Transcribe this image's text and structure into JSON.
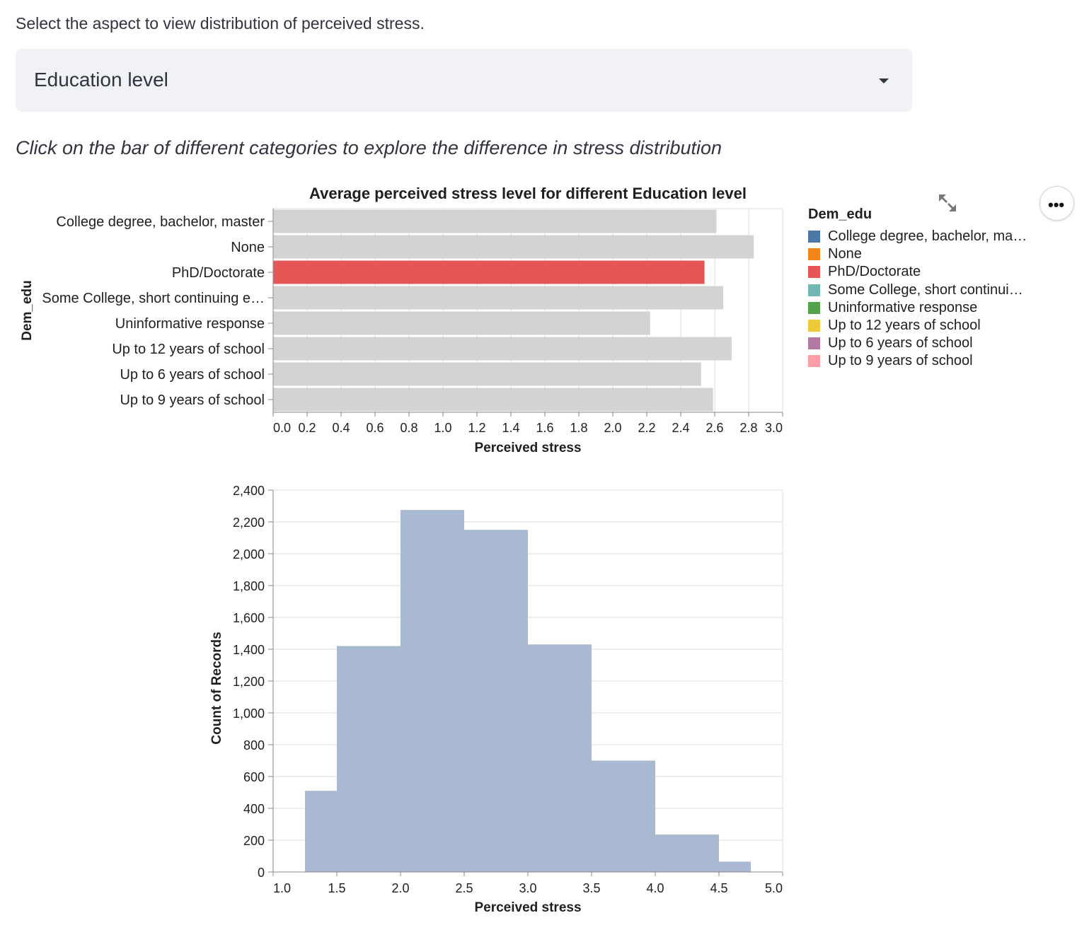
{
  "prompt": {
    "label": "Select the aspect to view distribution of perceived stress."
  },
  "select": {
    "value": "Education level"
  },
  "hint": {
    "text": "Click on the bar of different categories to explore the difference in stress distribution"
  },
  "chart_toolbar": {
    "fullscreen_icon": "expand-arrows-icon",
    "more_icon": "ellipsis-icon",
    "more_label": "•••"
  },
  "legend": {
    "title": "Dem_edu",
    "items": [
      {
        "label": "College degree, bachelor, ma…",
        "color": "#4c78a8"
      },
      {
        "label": "None",
        "color": "#f58518"
      },
      {
        "label": "PhD/Doctorate",
        "color": "#e45756"
      },
      {
        "label": "Some College, short continui…",
        "color": "#72b7b2"
      },
      {
        "label": "Uninformative response",
        "color": "#54a24b"
      },
      {
        "label": "Up to 12 years of school",
        "color": "#eeca3b"
      },
      {
        "label": "Up to 6 years of school",
        "color": "#b279a2"
      },
      {
        "label": "Up to 9 years of school",
        "color": "#ff9da6"
      }
    ]
  },
  "chart_data": [
    {
      "type": "bar",
      "orientation": "horizontal",
      "title": "Average perceived stress level for different Education level",
      "xlabel": "Perceived stress",
      "ylabel": "Dem_edu",
      "categories": [
        "College degree, bachelor, master",
        "None",
        "PhD/Doctorate",
        "Some College, short continuing e…",
        "Uninformative response",
        "Up to 12 years of school",
        "Up to 6 years of school",
        "Up to 9 years of school"
      ],
      "values": [
        2.61,
        2.83,
        2.54,
        2.65,
        2.22,
        2.7,
        2.52,
        2.59
      ],
      "selected": "PhD/Doctorate",
      "selected_color": "#e45756",
      "unselected_color": "#d3d3d3",
      "xlim": [
        0,
        3.0
      ],
      "xticks": [
        "0.0",
        "0.2",
        "0.4",
        "0.6",
        "0.8",
        "1.0",
        "1.2",
        "1.4",
        "1.6",
        "1.8",
        "2.0",
        "2.2",
        "2.4",
        "2.6",
        "2.8",
        "3.0"
      ],
      "grid": true
    },
    {
      "type": "bar",
      "subtype": "histogram",
      "title": "",
      "xlabel": "Perceived stress",
      "ylabel": "Count of Records",
      "bins": [
        {
          "x0": 1.25,
          "x1": 1.5,
          "count": 510
        },
        {
          "x0": 1.5,
          "x1": 2.0,
          "count": 1420
        },
        {
          "x0": 2.0,
          "x1": 2.5,
          "count": 2275
        },
        {
          "x0": 2.5,
          "x1": 3.0,
          "count": 2150
        },
        {
          "x0": 3.0,
          "x1": 3.5,
          "count": 1430
        },
        {
          "x0": 3.5,
          "x1": 4.0,
          "count": 700
        },
        {
          "x0": 4.0,
          "x1": 4.5,
          "count": 235
        },
        {
          "x0": 4.5,
          "x1": 4.75,
          "count": 65
        }
      ],
      "color": "#a8b9d1",
      "xlim": [
        1.0,
        5.0
      ],
      "ylim": [
        0,
        2400
      ],
      "xticks": [
        "1.0",
        "1.5",
        "2.0",
        "2.5",
        "3.0",
        "3.5",
        "4.0",
        "4.5",
        "5.0"
      ],
      "yticks": [
        "0",
        "200",
        "400",
        "600",
        "800",
        "1,000",
        "1,200",
        "1,400",
        "1,600",
        "1,800",
        "2,000",
        "2,200",
        "2,400"
      ],
      "grid": true
    }
  ]
}
